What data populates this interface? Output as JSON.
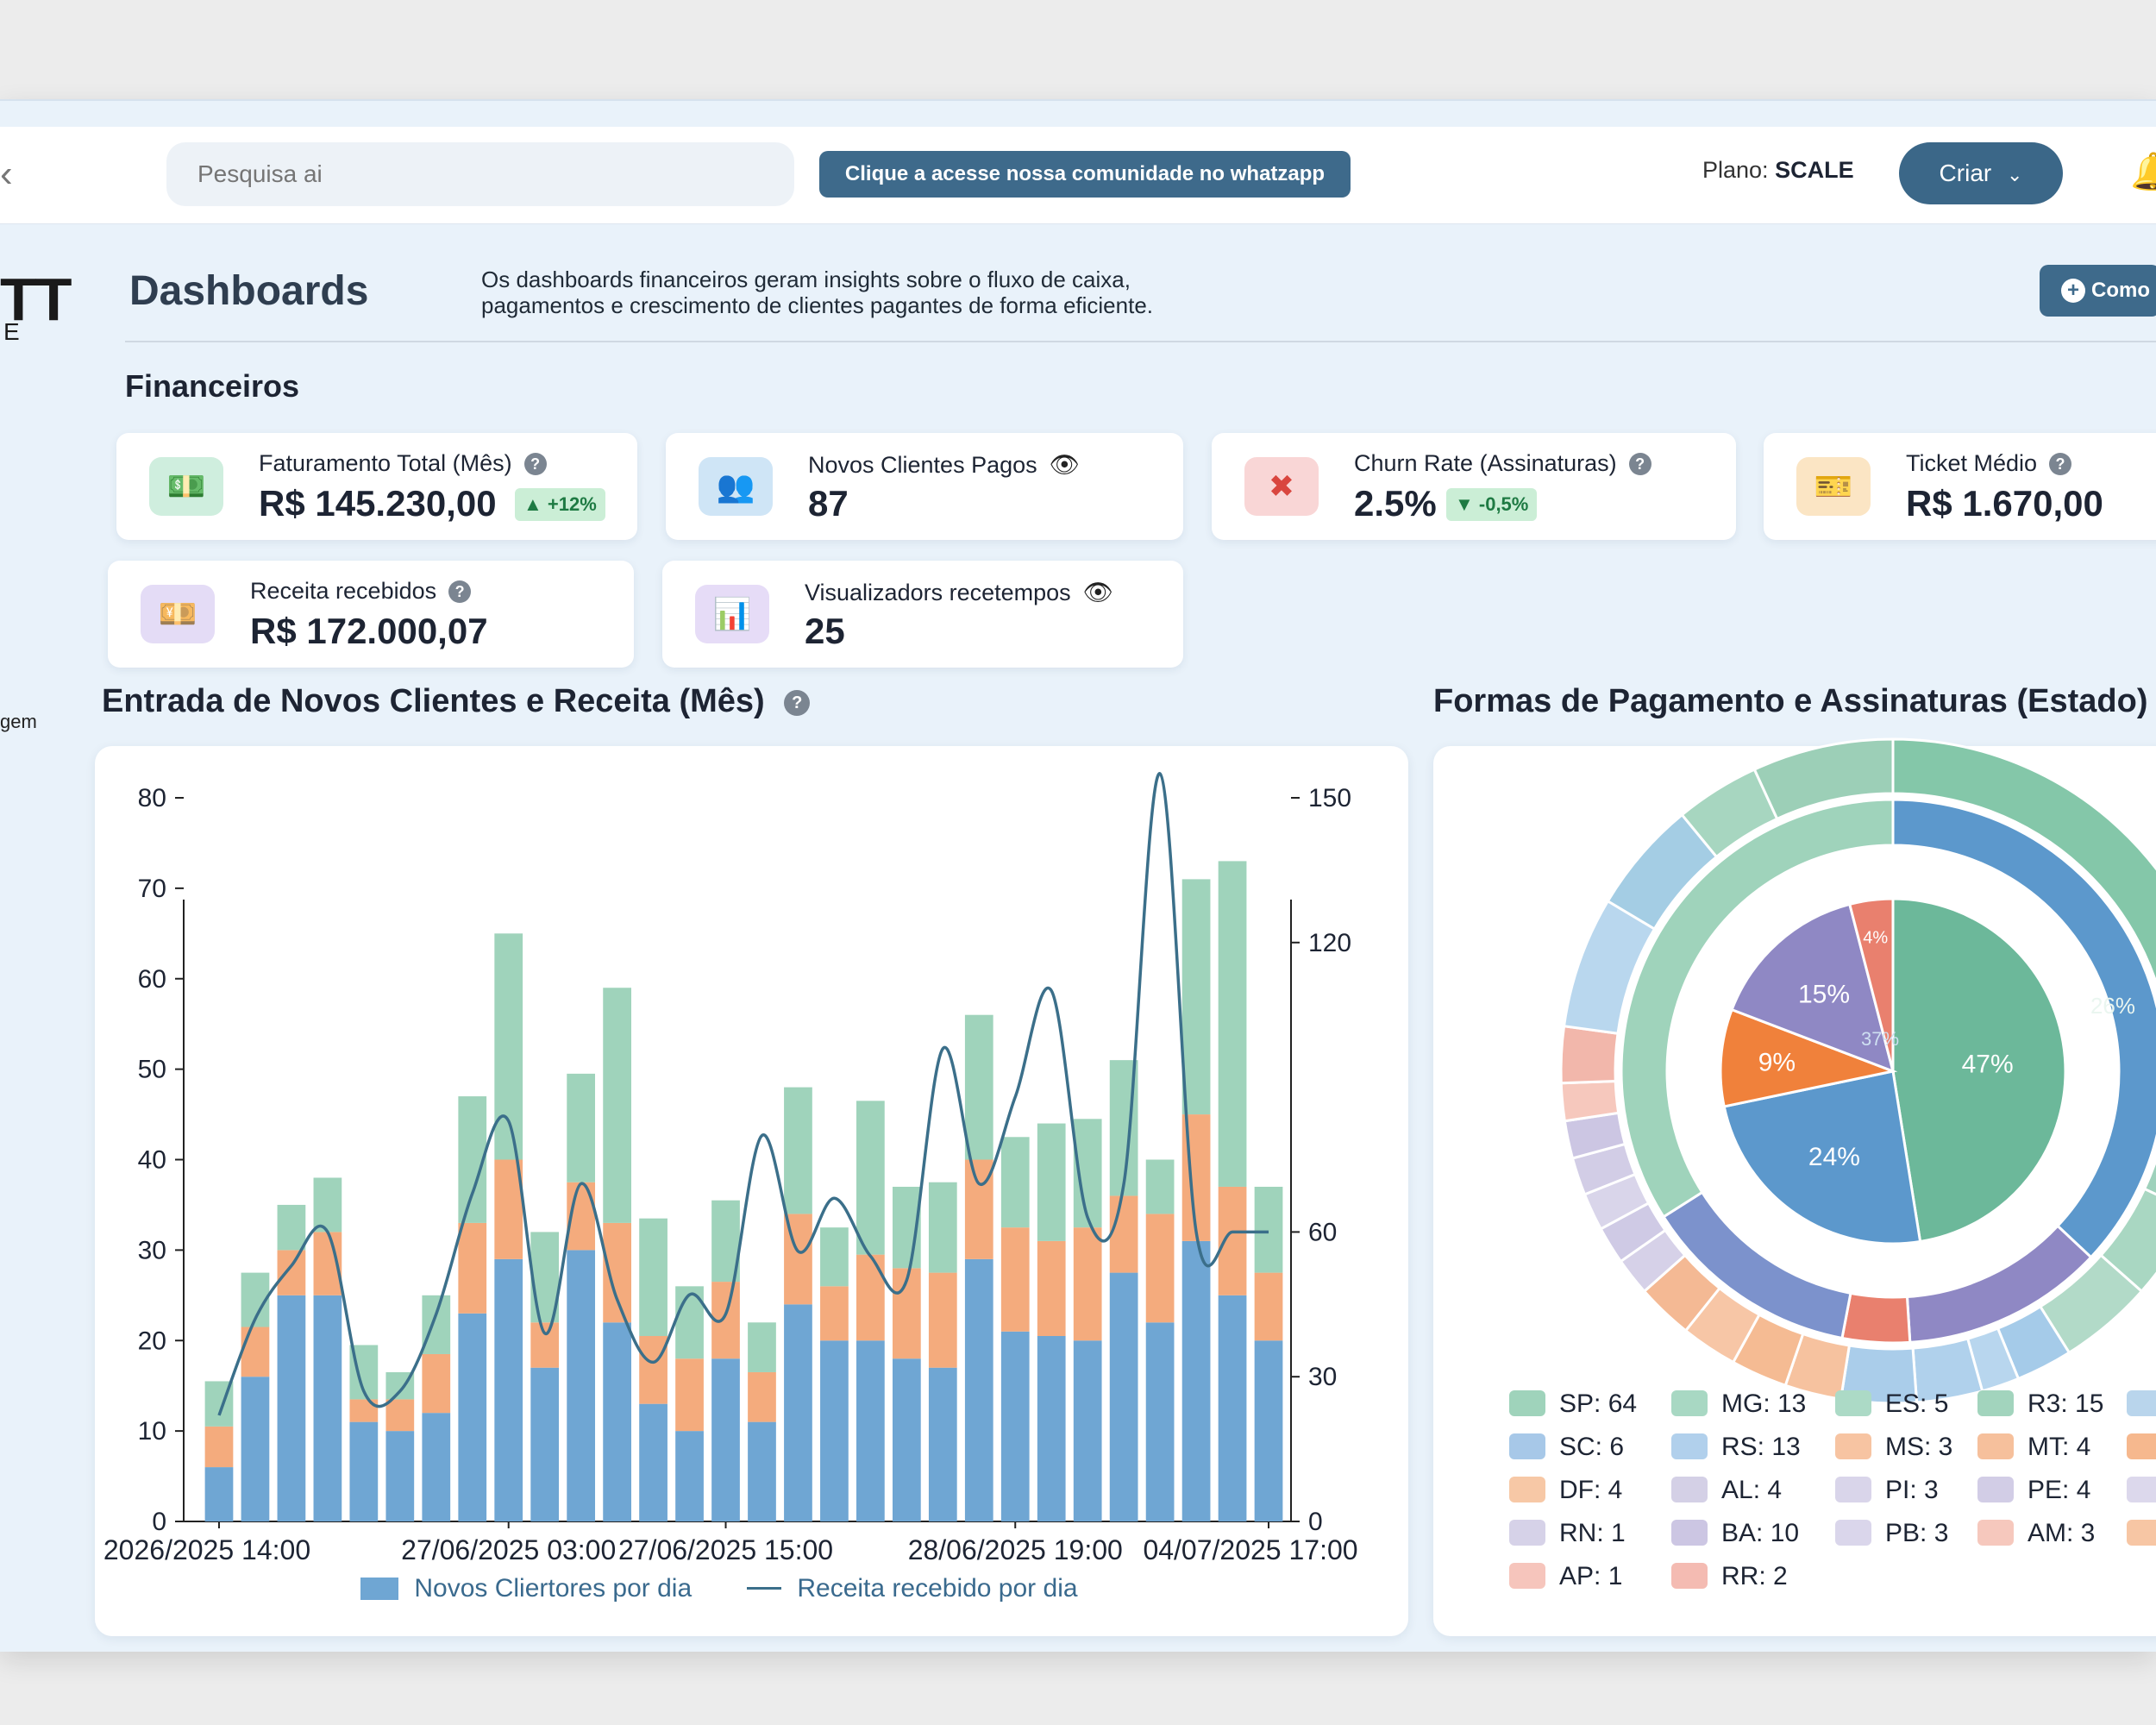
{
  "topbar": {
    "back_icon": "chevron-left-icon",
    "search_placeholder": "Pesquisa ai",
    "community_button": "Clique a acesse nossa comunidade no whatzapp",
    "plan_label": "Plano:",
    "plan_value": "SCALE",
    "create_button": "Criar",
    "bell_icon": "bell-icon"
  },
  "sidebar": {
    "logo_text": "TT",
    "logo_sub": "E",
    "partial_item": "gem"
  },
  "header": {
    "title": "Dashboards",
    "description": "Os dashboards financeiros geram insights sobre o fluxo de caixa, pagamentos e crescimento de clientes pagantes de forma eficiente.",
    "help_button": "Como"
  },
  "section_title": "Financeiros",
  "kpis": [
    {
      "label": "Faturamento Total (Mês)",
      "value": "R$ 145.230,00",
      "badge": "▲ +12%",
      "icon": "money-icon",
      "color": "#cfeede"
    },
    {
      "label": "Novos Clientes Pagos",
      "value": "87",
      "icon": "users-icon",
      "color": "#cfe5f6"
    },
    {
      "label": "Churn Rate (Assinaturas)",
      "value": "2.5%",
      "badge": "▼ -0,5%",
      "icon": "cancel-icon",
      "color": "#f9d6d6"
    },
    {
      "label": "Ticket Médio",
      "value": "R$ 1.670,00",
      "icon": "ticket-icon",
      "color": "#fbe5c4"
    },
    {
      "label": "Receita recebidos",
      "value": "R$ 172.000,07",
      "icon": "cash-icon",
      "color": "#e4dcf6"
    },
    {
      "label": "Visualizadors recetempos",
      "value": "25",
      "icon": "chart-icon",
      "color": "#e6dcf7"
    }
  ],
  "bar_panel_title": "Entrada de Novos Clientes e Receita (Mês)",
  "pie_panel_title": "Formas de Pagamento e Assinaturas (Estado)",
  "colors": {
    "blue": "#6fa6d3",
    "orange": "#f4ab7d",
    "green": "#9fd3bb",
    "line": "#3b6f8a",
    "accent": "#3e6a8b"
  },
  "chart_data": [
    {
      "type": "bar",
      "stacked": true,
      "x_tick_labels": [
        "2026/2025 14:00",
        "27/06/2025 03:00",
        "27/06/2025 15:00",
        "28/06/2025 19:00",
        "04/07/2025 17:00"
      ],
      "y_left_ticks": [
        0,
        10,
        20,
        30,
        40,
        50,
        60,
        70,
        80
      ],
      "y_right_ticks": [
        0,
        30,
        60,
        120,
        150
      ],
      "ylim_left": [
        0,
        80
      ],
      "ylim_right": [
        0,
        150
      ],
      "series": [
        {
          "name": "Novos Cliertores por dia",
          "values": [
            6,
            16,
            25,
            25,
            11,
            10,
            12,
            23,
            29,
            17,
            30,
            22,
            13,
            10,
            18,
            11,
            24,
            20,
            20,
            18,
            17,
            29,
            21,
            20.5,
            20,
            27.5,
            22,
            31,
            25,
            20
          ]
        },
        {
          "values": [
            4.5,
            5.5,
            5,
            7,
            2.5,
            3.5,
            6.5,
            10,
            11,
            5,
            7.5,
            11,
            7.5,
            8,
            8.5,
            5.5,
            10,
            6,
            9.5,
            10,
            10.5,
            11,
            11.5,
            10.5,
            12.5,
            8.5,
            12,
            14,
            12,
            7.5
          ]
        },
        {
          "values": [
            5,
            6,
            5,
            6,
            6,
            3,
            6.5,
            14,
            25,
            10,
            12,
            26,
            13,
            8,
            9,
            5.5,
            14,
            6.5,
            17,
            9,
            10,
            16,
            10,
            13,
            12,
            15,
            6,
            26,
            36,
            9.5
          ]
        },
        {
          "name": "Receita recebido por dia",
          "type": "line",
          "values": [
            22,
            42,
            53,
            60,
            27,
            27,
            43,
            68,
            83,
            39,
            70,
            46,
            33,
            47,
            43,
            80,
            56,
            67,
            55,
            50,
            98,
            70,
            88,
            110,
            63,
            70,
            155,
            60,
            60,
            60
          ]
        }
      ]
    },
    {
      "type": "pie",
      "inner_labels": [
        "47%",
        "24%",
        "9%",
        "15%",
        "4%"
      ],
      "inner_values": [
        47,
        24,
        9,
        15,
        4
      ],
      "inner_colors": [
        "#6cb89a",
        "#5c98cc",
        "#f0813b",
        "#8f88c4",
        "#e9806e"
      ],
      "middle_labels": [
        "37%"
      ],
      "outer_labels": [
        "26%"
      ],
      "legend": [
        {
          "label": "SP: 64",
          "color": "#9fd3bb"
        },
        {
          "label": "MG: 13",
          "color": "#a8d8c3"
        },
        {
          "label": "ES: 5",
          "color": "#acdac6"
        },
        {
          "label": "R3: 15",
          "color": "#a2d4bd"
        },
        {
          "label": "",
          "color": "#b9d5ec"
        },
        {
          "label": "SC: 6",
          "color": "#a7c8e8"
        },
        {
          "label": "RS: 13",
          "color": "#b1d0ec"
        },
        {
          "label": "MS: 3",
          "color": "#f7c4a2"
        },
        {
          "label": "MT: 4",
          "color": "#f6c09c"
        },
        {
          "label": "",
          "color": "#f6b88e"
        },
        {
          "label": "DF: 4",
          "color": "#f7c8a6"
        },
        {
          "label": "AL: 4",
          "color": "#d4d0e6"
        },
        {
          "label": "PI: 3",
          "color": "#d9d5ea"
        },
        {
          "label": "PE: 4",
          "color": "#d2cde6"
        },
        {
          "label": "",
          "color": "#dcd8ec"
        },
        {
          "label": "RN: 1",
          "color": "#d6d2e8"
        },
        {
          "label": "BA: 10",
          "color": "#ccc6e3"
        },
        {
          "label": "PB: 3",
          "color": "#dad6eb"
        },
        {
          "label": "AM: 3",
          "color": "#f6c8bd"
        },
        {
          "label": "",
          "color": "#f7c6a4"
        },
        {
          "label": "AP: 1",
          "color": "#f6c5bc"
        },
        {
          "label": "RR: 2",
          "color": "#f4bbb2"
        }
      ]
    }
  ]
}
